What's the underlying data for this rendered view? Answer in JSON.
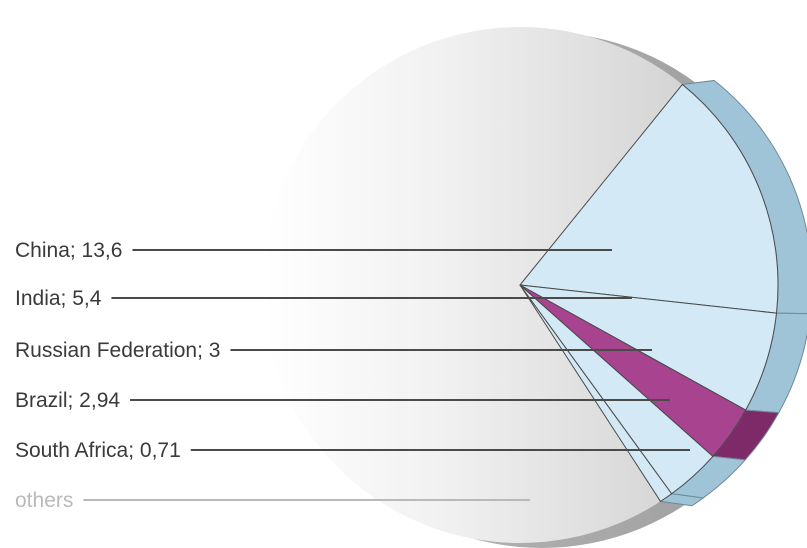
{
  "chart_data": {
    "type": "pie",
    "title": "",
    "slices": [
      {
        "label": "China; 13,6",
        "name": "China",
        "value": 13.6,
        "color": "#d3e9f5"
      },
      {
        "label": "India; 5,4",
        "name": "India",
        "value": 5.4,
        "color": "#d3e9f5"
      },
      {
        "label": "Russian Federation; 3",
        "name": "Russian Federation",
        "value": 3,
        "color": "#a8438f"
      },
      {
        "label": "Brazil; 2,94",
        "name": "Brazil",
        "value": 2.94,
        "color": "#d3e9f5"
      },
      {
        "label": "South Africa; 0,71",
        "name": "South Africa",
        "value": 0.71,
        "color": "#d3e9f5"
      },
      {
        "label": "others",
        "name": "others",
        "color": "#e6e6e6"
      }
    ],
    "legend": "left, leader lines",
    "colors": {
      "highlight": "#d3e9f5",
      "highlight_edge": "#9fc4d8",
      "accent": "#a8438f",
      "accent_edge": "#7e2a69",
      "others": "#e6e6e6",
      "label_text": "#3a3a3a",
      "muted_text": "#b9b9b9"
    }
  }
}
